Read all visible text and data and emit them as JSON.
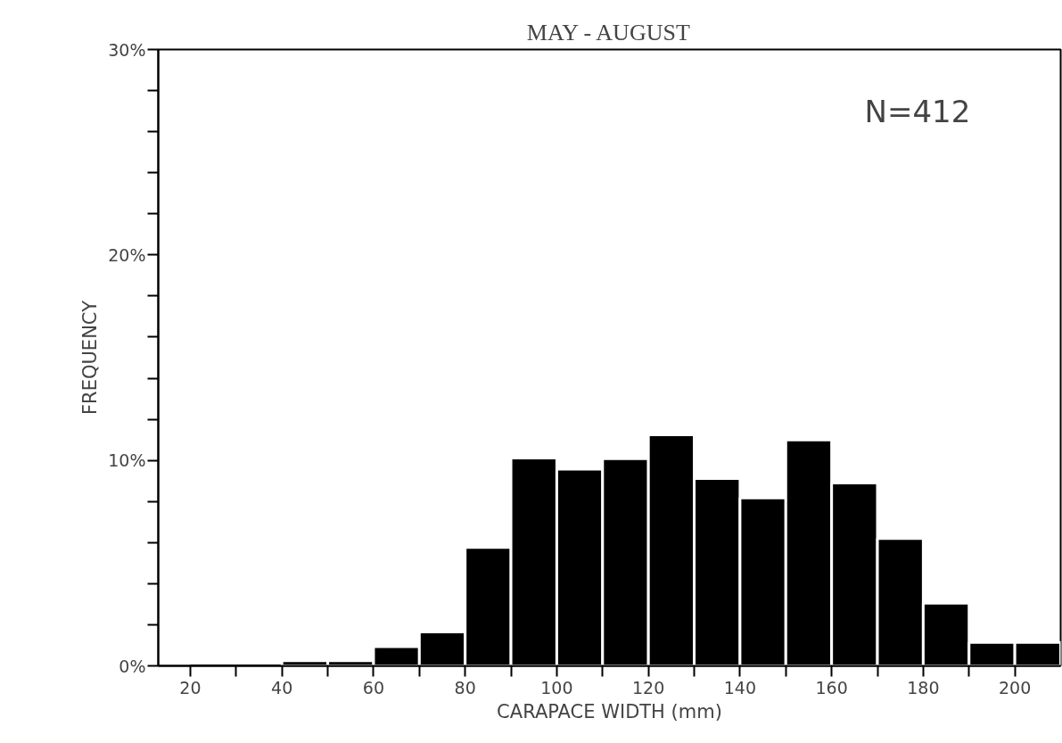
{
  "chart_data": {
    "type": "histogram",
    "title": "MAY - AUGUST",
    "xlabel": "CARAPACE WIDTH (mm)",
    "ylabel": "FREQUENCY",
    "annotations": [
      "N=412"
    ],
    "bins": [
      20,
      30,
      40,
      50,
      60,
      70,
      80,
      90,
      100,
      110,
      120,
      130,
      140,
      150,
      160,
      170,
      180,
      190,
      200,
      210
    ],
    "values": [
      0,
      0,
      0.25,
      0.25,
      0.93,
      1.65,
      5.76,
      10.12,
      9.57,
      10.08,
      11.24,
      9.12,
      8.17,
      11.0,
      8.9,
      6.2,
      3.05,
      1.14,
      1.14
    ],
    "color": "#000000",
    "xlim": [
      13,
      210
    ],
    "ylim": [
      0,
      30
    ],
    "xticks": [
      20,
      {
        "value": 30,
        "label": null
      },
      40,
      {
        "value": 50,
        "label": null
      },
      60,
      {
        "value": 70,
        "label": null
      },
      80,
      {
        "value": 90,
        "label": null
      },
      100,
      {
        "value": 110,
        "label": null
      },
      120,
      {
        "value": 130,
        "label": null
      },
      140,
      {
        "value": 150,
        "label": null
      },
      160,
      {
        "value": 170,
        "label": null
      },
      180,
      {
        "value": 190,
        "label": null
      },
      200
    ],
    "yticks": [
      {
        "value": 0,
        "label": "0%"
      },
      {
        "value": 2,
        "label": null
      },
      {
        "value": 4,
        "label": null
      },
      {
        "value": 6,
        "label": null
      },
      {
        "value": 8,
        "label": null
      },
      {
        "value": 10,
        "label": "10%"
      },
      {
        "value": 12,
        "label": null
      },
      {
        "value": 14,
        "label": null
      },
      {
        "value": 16,
        "label": null
      },
      {
        "value": 18,
        "label": null
      },
      {
        "value": 20,
        "label": "20%"
      },
      {
        "value": 22,
        "label": null
      },
      {
        "value": 24,
        "label": null
      },
      {
        "value": 26,
        "label": null
      },
      {
        "value": 28,
        "label": null
      },
      {
        "value": 30,
        "label": "30%"
      }
    ],
    "grid": false
  }
}
